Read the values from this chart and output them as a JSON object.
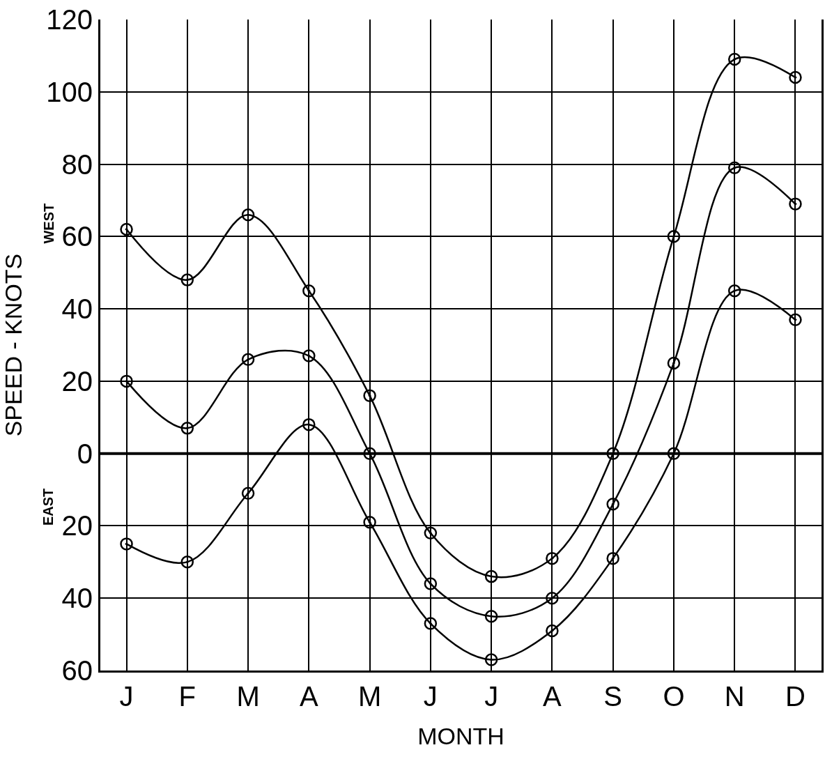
{
  "chart_data": {
    "type": "line",
    "xlabel": "MONTH",
    "ylabel": "SPEED - KNOTS",
    "annotations": [
      "WEST",
      "EAST"
    ],
    "categories": [
      "J",
      "F",
      "M",
      "A",
      "M",
      "J",
      "J",
      "A",
      "S",
      "O",
      "N",
      "D"
    ],
    "series": [
      {
        "color": "#000000",
        "values": [
          62,
          48,
          66,
          45,
          16,
          -22,
          -34,
          -29,
          0,
          60,
          109,
          104
        ]
      },
      {
        "color": "#000000",
        "values": [
          20,
          7,
          26,
          27,
          0,
          -36,
          -45,
          -40,
          -14,
          25,
          79,
          69
        ]
      },
      {
        "color": "#000000",
        "values": [
          -25,
          -30,
          -11,
          8,
          -19,
          -47,
          -57,
          -49,
          -29,
          0,
          45,
          37
        ]
      }
    ],
    "ylim": [
      -60,
      120
    ],
    "yticks": [
      {
        "value": -60,
        "label": "60"
      },
      {
        "value": -40,
        "label": "40"
      },
      {
        "value": -20,
        "label": "20"
      },
      0,
      20,
      40,
      60,
      80,
      100,
      120
    ],
    "ref_lines": [
      {
        "axis": "y",
        "value": 0,
        "color": "#000000"
      }
    ],
    "grid": true,
    "marker": "circle",
    "line_style": "solid"
  }
}
